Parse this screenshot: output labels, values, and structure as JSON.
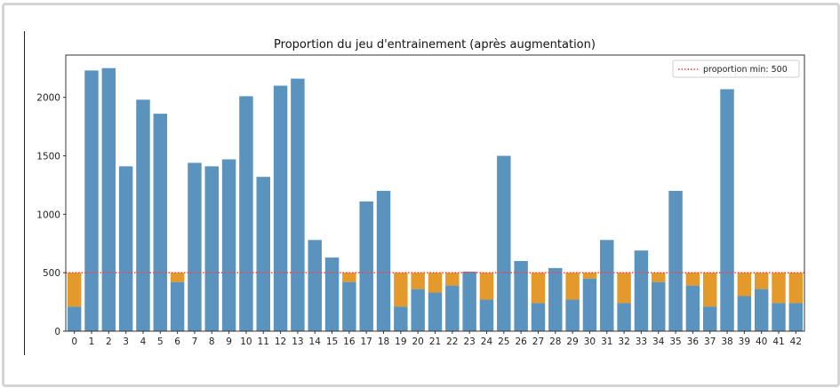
{
  "chart_data": {
    "type": "bar",
    "title": "Proportion du jeu d'entrainement (après augmentation)",
    "xlabel": "",
    "ylabel": "",
    "categories": [
      "0",
      "1",
      "2",
      "3",
      "4",
      "5",
      "6",
      "7",
      "8",
      "9",
      "10",
      "11",
      "12",
      "13",
      "14",
      "15",
      "16",
      "17",
      "18",
      "19",
      "20",
      "21",
      "22",
      "23",
      "24",
      "25",
      "26",
      "27",
      "28",
      "29",
      "30",
      "31",
      "32",
      "33",
      "34",
      "35",
      "36",
      "37",
      "38",
      "39",
      "40",
      "41",
      "42"
    ],
    "values": [
      210,
      2230,
      2250,
      1410,
      1980,
      1860,
      420,
      1440,
      1410,
      1470,
      2010,
      1320,
      2100,
      2160,
      780,
      630,
      420,
      1110,
      1200,
      210,
      360,
      330,
      390,
      510,
      270,
      1500,
      600,
      240,
      540,
      270,
      450,
      780,
      240,
      690,
      420,
      1200,
      390,
      210,
      2070,
      300,
      360,
      240,
      240
    ],
    "augmentation_fill_to": 500,
    "ylim": [
      0,
      2362
    ],
    "yticks": [
      0,
      500,
      1000,
      1500,
      2000
    ],
    "grid": false,
    "legend": {
      "placement": "top-right",
      "entries": [
        {
          "label": "proportion min: 500",
          "style": "dotted",
          "color": "#ff3b3b"
        }
      ]
    },
    "colors": {
      "original": "#5b93bf",
      "augmented": "#e39a2b",
      "min_line": "#ff3b3b"
    }
  }
}
